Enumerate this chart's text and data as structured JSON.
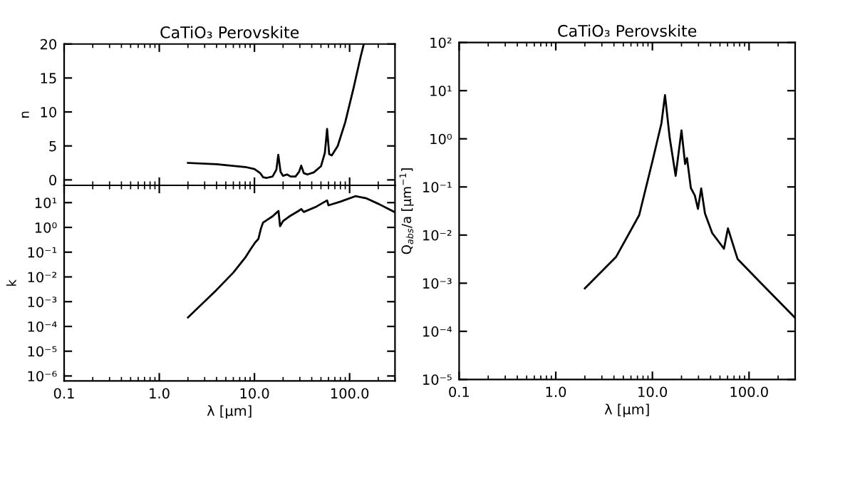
{
  "chart_data": [
    {
      "type": "line",
      "title": "CaTiO₃ Perovskite",
      "ylabel": "n",
      "log": "x",
      "tick_labels": "y",
      "color": "#000000",
      "x": [
        2.0,
        4.0,
        8.0,
        10.0,
        11.5,
        12.3,
        13.5,
        15.5,
        17.0,
        17.8,
        18.8,
        20.0,
        22.0,
        24.0,
        27.0,
        29.5,
        31.0,
        33.0,
        36.0,
        42.0,
        50.0,
        55.0,
        58.0,
        61.0,
        65.0,
        75.0,
        90.0,
        110.0,
        130.0,
        141.0
      ],
      "values": [
        2.5,
        2.3,
        1.9,
        1.6,
        1.0,
        0.4,
        0.3,
        0.5,
        1.5,
        3.7,
        1.2,
        0.6,
        0.8,
        0.5,
        0.5,
        1.2,
        2.1,
        1.0,
        0.8,
        1.1,
        2.0,
        4.0,
        7.5,
        3.8,
        3.6,
        5.0,
        8.5,
        13.5,
        18.0,
        20.0
      ],
      "xlim": [
        0.1,
        300
      ],
      "ylim": [
        -0.8,
        20
      ],
      "yticks": [
        0,
        5,
        10,
        15,
        20
      ]
    },
    {
      "type": "line",
      "ylabel": "k",
      "xlabel": "λ [μm]",
      "log": "xy",
      "color": "#000000",
      "x": [
        2.0,
        4.0,
        6.0,
        8.0,
        9.2,
        10.2,
        11.0,
        11.7,
        12.3,
        13.8,
        15.5,
        17.4,
        17.9,
        18.6,
        20.0,
        23.0,
        29.0,
        31.0,
        33.0,
        45.0,
        58.0,
        60.0,
        80.0,
        115.0,
        150.0,
        204.0,
        295.0
      ],
      "values": [
        0.00023,
        0.003,
        0.015,
        0.06,
        0.14,
        0.25,
        0.34,
        0.9,
        1.55,
        2.1,
        2.8,
        4.2,
        4.6,
        1.12,
        1.8,
        2.7,
        4.6,
        5.5,
        4.2,
        7.0,
        12.3,
        7.8,
        11.0,
        18.2,
        15.0,
        8.7,
        4.2
      ],
      "xlim": [
        0.1,
        300
      ],
      "xticks": [
        0.1,
        {
          "value": 1,
          "label": "1.0"
        },
        {
          "value": 10,
          "label": "10.0"
        },
        {
          "value": 100,
          "label": "100.0"
        }
      ],
      "ylim": [
        6.3e-07,
        50
      ],
      "yticks": [
        {
          "value": 1e-06,
          "label": "10⁻⁶"
        },
        {
          "value": 1e-05,
          "label": "10⁻⁵"
        },
        {
          "value": 0.0001,
          "label": "10⁻⁴"
        },
        {
          "value": 0.001,
          "label": "10⁻³"
        },
        {
          "value": 0.01,
          "label": "10⁻²"
        },
        {
          "value": 0.1,
          "label": "10⁻¹"
        },
        {
          "value": 1,
          "label": "10⁰"
        },
        {
          "value": 10,
          "label": "10¹"
        }
      ]
    },
    {
      "type": "line",
      "title": "CaTiO₃ Perovskite",
      "ylabel": "Q$_{abs}$/a [μm$^{−1}$]",
      "xlabel": "λ [μm]",
      "log": "xy",
      "color": "#000000",
      "x": [
        2.0,
        4.2,
        7.3,
        10.0,
        12.4,
        13.5,
        15.1,
        17.4,
        20.0,
        21.8,
        22.8,
        25.0,
        27.5,
        29.6,
        32.0,
        35.0,
        41.6,
        55.0,
        60.5,
        76.0,
        119.0,
        300.0
      ],
      "values": [
        0.00078,
        0.0035,
        0.026,
        0.34,
        2.1,
        8.1,
        1.05,
        0.17,
        1.5,
        0.3,
        0.4,
        0.095,
        0.066,
        0.035,
        0.093,
        0.028,
        0.011,
        0.0052,
        0.0138,
        0.0032,
        0.00126,
        0.00019
      ],
      "xlim": [
        0.1,
        300
      ],
      "xticks": [
        0.1,
        {
          "value": 1,
          "label": "1.0"
        },
        {
          "value": 10,
          "label": "10.0"
        },
        {
          "value": 100,
          "label": "100.0"
        }
      ],
      "ylim": [
        1e-05,
        100
      ],
      "yticks": [
        {
          "value": 1e-05,
          "label": "10⁻⁵"
        },
        {
          "value": 0.0001,
          "label": "10⁻⁴"
        },
        {
          "value": 0.001,
          "label": "10⁻³"
        },
        {
          "value": 0.01,
          "label": "10⁻²"
        },
        {
          "value": 0.1,
          "label": "10⁻¹"
        },
        {
          "value": 1,
          "label": "10⁰"
        },
        {
          "value": 10,
          "label": "10¹"
        },
        {
          "value": 100,
          "label": "10²"
        }
      ]
    }
  ]
}
